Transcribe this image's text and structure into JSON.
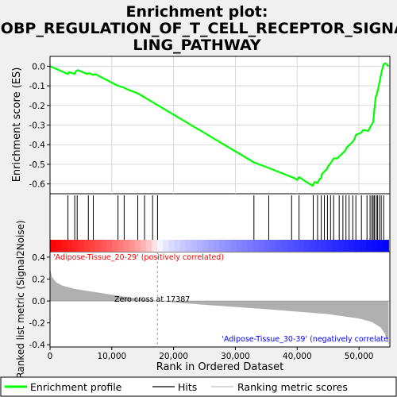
{
  "chart_data": {
    "type": "line",
    "title": [
      "Enrichment plot:",
      "GOBP_REGULATION_OF_T_CELL_RECEPTOR_SIGNA",
      "LING_PATHWAY"
    ],
    "es_panel": {
      "ylabel": "Enrichment score (ES)",
      "ylim": [
        -0.65,
        0.05
      ],
      "yticks": [
        {
          "v": 0.0,
          "label": "0.0"
        },
        {
          "v": -0.1,
          "label": "-0.1"
        },
        {
          "v": -0.2,
          "label": "-0.2"
        },
        {
          "v": -0.3,
          "label": "-0.3"
        },
        {
          "v": -0.4,
          "label": "-0.4"
        },
        {
          "v": -0.5,
          "label": "-0.5"
        },
        {
          "v": -0.6,
          "label": "-0.6"
        }
      ],
      "line_color": "#00ff00",
      "points": [
        [
          0,
          0.0
        ],
        [
          2900,
          -0.04
        ],
        [
          3100,
          -0.03
        ],
        [
          4000,
          -0.04
        ],
        [
          4200,
          -0.025
        ],
        [
          4500,
          -0.02
        ],
        [
          6000,
          -0.04
        ],
        [
          6300,
          -0.035
        ],
        [
          7000,
          -0.045
        ],
        [
          7300,
          -0.04
        ],
        [
          11000,
          -0.1
        ],
        [
          12000,
          -0.11
        ],
        [
          12300,
          -0.115
        ],
        [
          14300,
          -0.14
        ],
        [
          33000,
          -0.49
        ],
        [
          35500,
          -0.52
        ],
        [
          39500,
          -0.57
        ],
        [
          40000,
          -0.58
        ],
        [
          40300,
          -0.565
        ],
        [
          41500,
          -0.59
        ],
        [
          42500,
          -0.61
        ],
        [
          42800,
          -0.59
        ],
        [
          43300,
          -0.595
        ],
        [
          43600,
          -0.575
        ],
        [
          43900,
          -0.57
        ],
        [
          44000,
          -0.55
        ],
        [
          44300,
          -0.54
        ],
        [
          44800,
          -0.525
        ],
        [
          45000,
          -0.51
        ],
        [
          45300,
          -0.5
        ],
        [
          45600,
          -0.485
        ],
        [
          45900,
          -0.47
        ],
        [
          46500,
          -0.47
        ],
        [
          47300,
          -0.445
        ],
        [
          47800,
          -0.43
        ],
        [
          48000,
          -0.415
        ],
        [
          48500,
          -0.4
        ],
        [
          49000,
          -0.385
        ],
        [
          49300,
          -0.37
        ],
        [
          49500,
          -0.35
        ],
        [
          50300,
          -0.34
        ],
        [
          50700,
          -0.325
        ],
        [
          51500,
          -0.33
        ],
        [
          51900,
          -0.305
        ],
        [
          52300,
          -0.285
        ],
        [
          52500,
          -0.22
        ],
        [
          52700,
          -0.16
        ],
        [
          53000,
          -0.13
        ],
        [
          53200,
          -0.1
        ],
        [
          53400,
          -0.07
        ],
        [
          53600,
          -0.04
        ],
        [
          53800,
          -0.01
        ],
        [
          54000,
          0.01
        ],
        [
          54300,
          0.015
        ],
        [
          54800,
          0.0
        ]
      ]
    },
    "hits": [
      2900,
      4000,
      4400,
      6200,
      7000,
      11000,
      12000,
      14200,
      15300,
      16600,
      17400,
      33000,
      35400,
      39100,
      40300,
      42600,
      43300,
      43900,
      44400,
      44900,
      45400,
      45900,
      46800,
      47400,
      47900,
      48400,
      49000,
      49500,
      50400,
      51300,
      51800,
      52100,
      52300,
      52500,
      52800,
      53000,
      53300,
      53600,
      54000
    ],
    "rank_panel": {
      "ylabel": "Ranked list metric (Signal2Noise)",
      "ylim": [
        -0.42,
        0.45
      ],
      "yticks": [
        {
          "v": 0.4,
          "label": "0.4"
        },
        {
          "v": 0.2,
          "label": "0.2"
        },
        {
          "v": 0.0,
          "label": "0.0"
        },
        {
          "v": -0.2,
          "label": "-0.2"
        },
        {
          "v": -0.4,
          "label": "-0.4"
        }
      ],
      "metric_profile": [
        [
          0,
          0.3
        ],
        [
          300,
          0.22
        ],
        [
          1000,
          0.17
        ],
        [
          2000,
          0.14
        ],
        [
          4000,
          0.11
        ],
        [
          8000,
          0.075
        ],
        [
          12000,
          0.04
        ],
        [
          17387,
          0.0
        ],
        [
          25000,
          -0.035
        ],
        [
          35000,
          -0.075
        ],
        [
          45000,
          -0.12
        ],
        [
          50000,
          -0.16
        ],
        [
          52000,
          -0.19
        ],
        [
          53500,
          -0.24
        ],
        [
          54200,
          -0.3
        ],
        [
          54800,
          -0.4
        ]
      ],
      "zero_cross": 17387,
      "zero_cross_label": "Zero cross at 17387",
      "pos_label": "'Adipose-Tissue_20-29' (positively correlated)",
      "neg_label": "'Adipose-Tissue_30-39' (negatively correlate"
    },
    "xlabel": "Rank in Ordered Dataset",
    "xlim": [
      0,
      55000
    ],
    "xticks": [
      {
        "v": 0,
        "label": "0"
      },
      {
        "v": 10000,
        "label": "10,000"
      },
      {
        "v": 20000,
        "label": "20,000"
      },
      {
        "v": 30000,
        "label": "30,000"
      },
      {
        "v": 40000,
        "label": "40,000"
      },
      {
        "v": 50000,
        "label": "50,000"
      }
    ],
    "n_genes": 54800,
    "legend": [
      {
        "label": "Enrichment profile",
        "color": "#00ff00"
      },
      {
        "label": "Hits",
        "color": "#000000"
      },
      {
        "label": "Ranking metric scores",
        "color": "#bfbfbf"
      }
    ],
    "colors": {
      "pos_label": "#ff0000",
      "neg_label": "#0000ff",
      "metric_fill": "#b0b0b0",
      "zero_line": "#a0a0a0"
    }
  }
}
